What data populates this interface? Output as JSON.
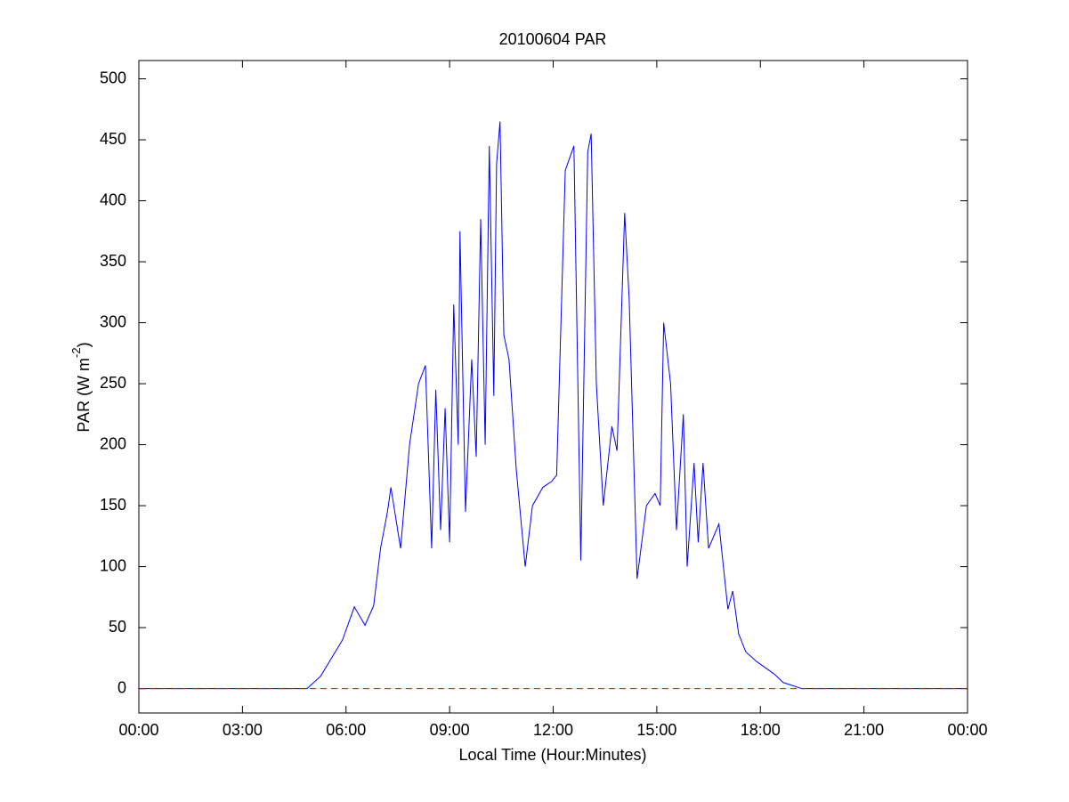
{
  "chart_data": {
    "type": "line",
    "title": "20100604 PAR",
    "xlabel": "Local Time (Hour:Minutes)",
    "ylabel": {
      "text": "PAR (W m",
      "superscript": "-2",
      "suffix": ")"
    },
    "x": [
      0,
      4.87,
      5.26,
      5.9,
      6.24,
      6.55,
      6.8,
      7.0,
      7.2,
      7.3,
      7.58,
      7.84,
      8.1,
      8.3,
      8.48,
      8.6,
      8.74,
      8.87,
      9.0,
      9.12,
      9.25,
      9.3,
      9.46,
      9.64,
      9.77,
      9.9,
      10.03,
      10.15,
      10.28,
      10.36,
      10.46,
      10.57,
      10.72,
      10.93,
      11.19,
      11.4,
      11.7,
      11.96,
      12.1,
      12.35,
      12.6,
      12.8,
      13.0,
      13.1,
      13.25,
      13.45,
      13.7,
      13.85,
      14.07,
      14.2,
      14.43,
      14.7,
      14.95,
      15.1,
      15.2,
      15.4,
      15.57,
      15.77,
      15.88,
      16.08,
      16.2,
      16.34,
      16.5,
      16.8,
      17.06,
      17.2,
      17.37,
      17.58,
      17.9,
      18.4,
      18.66,
      19.2,
      24
    ],
    "series": [
      {
        "name": "PAR",
        "color": "#0000ff",
        "values": [
          0,
          0,
          10,
          40,
          67,
          52,
          68,
          115,
          145,
          165,
          115,
          200,
          250,
          265,
          115,
          245,
          130,
          230,
          120,
          315,
          200,
          375,
          145,
          270,
          190,
          385,
          200,
          445,
          240,
          430,
          465,
          290,
          270,
          180,
          100,
          150,
          165,
          170,
          175,
          425,
          445,
          105,
          440,
          455,
          250,
          150,
          215,
          195,
          390,
          320,
          90,
          150,
          160,
          150,
          300,
          250,
          130,
          225,
          100,
          185,
          120,
          185,
          115,
          135,
          65,
          80,
          45,
          30,
          22,
          12,
          5,
          0,
          0
        ]
      }
    ],
    "reference_line": {
      "value": 0,
      "color": "#ff0000",
      "style": "dashed"
    },
    "xlim": [
      0,
      24
    ],
    "xticks": [
      {
        "value": 0,
        "label": "00:00"
      },
      {
        "value": 3,
        "label": "03:00"
      },
      {
        "value": 6,
        "label": "06:00"
      },
      {
        "value": 9,
        "label": "09:00"
      },
      {
        "value": 12,
        "label": "12:00"
      },
      {
        "value": 15,
        "label": "15:00"
      },
      {
        "value": 18,
        "label": "18:00"
      },
      {
        "value": 21,
        "label": "21:00"
      },
      {
        "value": 24,
        "label": "00:00"
      }
    ],
    "ylim": [
      -20,
      515
    ],
    "yticks": [
      0,
      50,
      100,
      150,
      200,
      250,
      300,
      350,
      400,
      450,
      500
    ],
    "grid": false
  }
}
